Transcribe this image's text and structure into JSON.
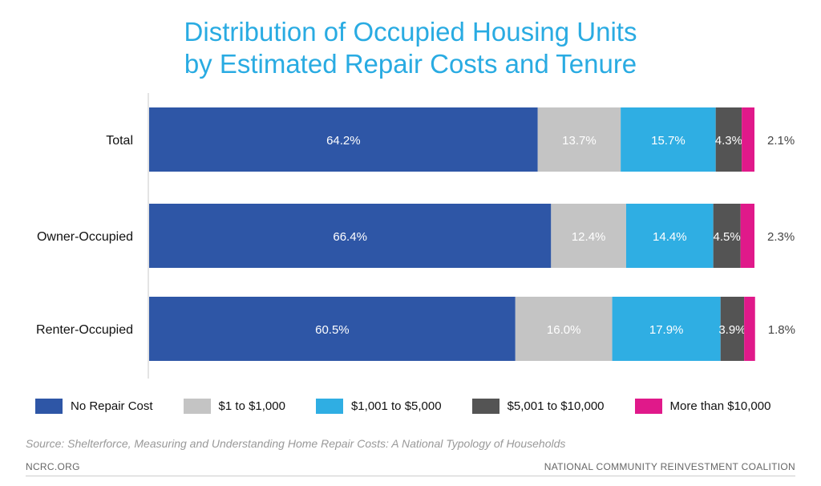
{
  "title_line1": "Distribution of Occupied Housing Units",
  "title_line2": "by Estimated Repair Costs and Tenure",
  "source": "Source: Shelterforce, Measuring and Understanding Home Repair Costs: A National Typology of Households",
  "footer_left": "NCRC.ORG",
  "footer_right": "NATIONAL COMMUNITY REINVESTMENT COALITION",
  "chart_data": {
    "type": "bar",
    "orientation": "horizontal",
    "stacked": true,
    "categories": [
      "Total",
      "Owner-Occupied",
      "Renter-Occupied"
    ],
    "series": [
      {
        "name": "No Repair Cost",
        "color": "#2E56A6",
        "label_color": "#ffffff",
        "values": [
          64.2,
          66.4,
          60.5
        ],
        "labels": [
          "64.2%",
          "66.4%",
          "60.5%"
        ]
      },
      {
        "name": "$1 to $1,000",
        "color": "#C4C4C4",
        "label_color": "#ffffff",
        "values": [
          13.7,
          12.4,
          16.0
        ],
        "labels": [
          "13.7%",
          "12.4%",
          "16.0%"
        ]
      },
      {
        "name": "$1,001 to $5,000",
        "color": "#2FAEE3",
        "label_color": "#ffffff",
        "values": [
          15.7,
          14.4,
          17.9
        ],
        "labels": [
          "15.7%",
          "14.4%",
          "17.9%"
        ]
      },
      {
        "name": "$5,001 to $10,000",
        "color": "#545454",
        "label_color": "#ffffff",
        "values": [
          4.3,
          4.5,
          3.9
        ],
        "labels": [
          "4.3%",
          "4.5%",
          "3.9%"
        ]
      },
      {
        "name": "More than $10,000",
        "color": "#E0198A",
        "label_color": "#444444",
        "values": [
          2.1,
          2.3,
          1.8
        ],
        "labels": [
          "2.1%",
          "2.3%",
          "1.8%"
        ]
      }
    ],
    "xlim": [
      0,
      100
    ],
    "grid": false,
    "legend_position": "bottom"
  }
}
